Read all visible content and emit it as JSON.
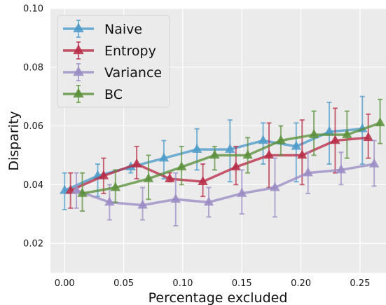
{
  "chart_data": {
    "type": "line",
    "xlabel": "Percentage excluded",
    "ylabel": "Disparity",
    "xlim": [
      -0.012,
      0.272
    ],
    "ylim": [
      0.01,
      0.1
    ],
    "xticks": [
      0.0,
      0.05,
      0.1,
      0.15,
      0.2,
      0.25
    ],
    "xtick_labels": [
      "0.00",
      "0.05",
      "0.10",
      "0.15",
      "0.20",
      "0.25"
    ],
    "yticks": [
      0.02,
      0.04,
      0.06,
      0.08,
      0.1
    ],
    "ytick_labels": [
      "0.02",
      "0.04",
      "0.06",
      "0.08",
      "0.10"
    ],
    "grid": true,
    "legend_position": "top-left",
    "marker": "triangle",
    "series": [
      {
        "name": "Naive",
        "color": "#4c9ac9",
        "x": [
          0.0,
          0.028,
          0.056,
          0.084,
          0.112,
          0.14,
          0.168,
          0.196,
          0.224,
          0.252
        ],
        "y": [
          0.038,
          0.043,
          0.046,
          0.049,
          0.052,
          0.052,
          0.055,
          0.053,
          0.058,
          0.059
        ],
        "yerr_low": [
          0.0315,
          0.036,
          0.044,
          0.042,
          0.045,
          0.041,
          0.047,
          0.041,
          0.047,
          0.047
        ],
        "yerr_high": [
          0.044,
          0.047,
          0.046,
          0.055,
          0.059,
          0.062,
          0.061,
          0.061,
          0.068,
          0.07
        ]
      },
      {
        "name": "Entropy",
        "color": "#b72c46",
        "x": [
          0.005,
          0.033,
          0.061,
          0.089,
          0.117,
          0.145,
          0.173,
          0.201,
          0.229,
          0.257
        ],
        "y": [
          0.038,
          0.043,
          0.047,
          0.042,
          0.041,
          0.046,
          0.05,
          0.05,
          0.055,
          0.056
        ],
        "yerr_low": [
          0.032,
          0.037,
          0.042,
          0.041,
          0.036,
          0.04,
          0.039,
          0.04,
          0.044,
          0.049
        ],
        "yerr_high": [
          0.044,
          0.049,
          0.053,
          0.044,
          0.047,
          0.053,
          0.061,
          0.062,
          0.066,
          0.064
        ]
      },
      {
        "name": "Variance",
        "color": "#9a8bc4",
        "x": [
          0.01,
          0.038,
          0.066,
          0.094,
          0.122,
          0.15,
          0.178,
          0.206,
          0.234,
          0.262
        ],
        "y": [
          0.038,
          0.034,
          0.033,
          0.035,
          0.034,
          0.037,
          0.039,
          0.044,
          0.045,
          0.047
        ],
        "yerr_low": [
          0.032,
          0.028,
          0.028,
          0.026,
          0.029,
          0.03,
          0.029,
          0.037,
          0.04,
          0.0395
        ],
        "yerr_high": [
          0.044,
          0.04,
          0.039,
          0.044,
          0.039,
          0.045,
          0.049,
          0.051,
          0.051,
          0.055
        ]
      },
      {
        "name": "BC",
        "color": "#5a8f3a",
        "x": [
          0.015,
          0.043,
          0.071,
          0.099,
          0.127,
          0.155,
          0.183,
          0.211,
          0.239,
          0.267
        ],
        "y": [
          0.037,
          0.039,
          0.042,
          0.046,
          0.05,
          0.05,
          0.055,
          0.057,
          0.057,
          0.061
        ],
        "yerr_low": [
          0.031,
          0.034,
          0.035,
          0.04,
          0.045,
          0.044,
          0.05,
          0.05,
          0.049,
          0.054
        ],
        "yerr_high": [
          0.044,
          0.045,
          0.05,
          0.053,
          0.053,
          0.056,
          0.06,
          0.065,
          0.065,
          0.069
        ]
      }
    ]
  }
}
